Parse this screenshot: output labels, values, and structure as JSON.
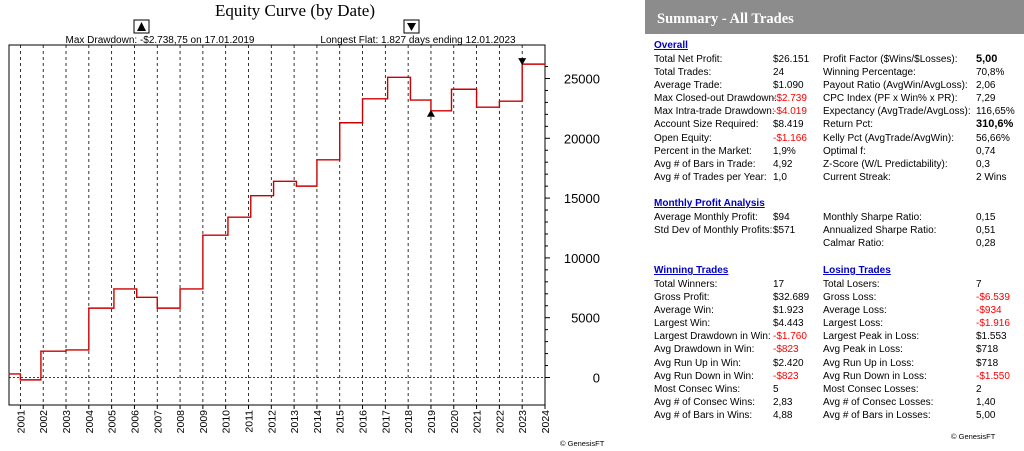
{
  "chart": {
    "title": "Equity Curve (by Date)",
    "max_drawdown_label": "Max Drawdown: -$2.738,75 on 17.01.2019",
    "longest_flat_label": "Longest Flat: 1.827 days ending 12.01.2023",
    "watermark": "© GenesisFT"
  },
  "chart_data": {
    "type": "line",
    "title": "Equity Curve (by Date)",
    "xlabel": "",
    "ylabel": "",
    "x": [
      "2000.5",
      "2001.0",
      "2001.9",
      "2003.0",
      "2004.0",
      "2005.1",
      "2006.1",
      "2007.0",
      "2008.0",
      "2009.0",
      "2010.1",
      "2011.1",
      "2012.1",
      "2013.1",
      "2014.0",
      "2015.0",
      "2016.0",
      "2017.1",
      "2018.1",
      "2019.0",
      "2019.9",
      "2021.0",
      "2022.0",
      "2023.0",
      "2023.4"
    ],
    "values": [
      300,
      -200,
      2200,
      2300,
      5800,
      7400,
      6700,
      5800,
      7400,
      11900,
      13400,
      15200,
      16400,
      16000,
      18200,
      21300,
      23300,
      25100,
      23200,
      22300,
      24100,
      22600,
      23100,
      26200,
      26200
    ],
    "ylim": [
      -2300,
      27800
    ],
    "yticks": [
      "0",
      "5000",
      "10000",
      "15000",
      "20000",
      "25000"
    ],
    "ytick_values": [
      0,
      5000,
      10000,
      15000,
      20000,
      25000
    ],
    "xticks": [
      "2001",
      "2002",
      "2003",
      "2004",
      "2005",
      "2006",
      "2007",
      "2008",
      "2009",
      "2010",
      "2011",
      "2012",
      "2013",
      "2014",
      "2015",
      "2016",
      "2017",
      "2018",
      "2019",
      "2020",
      "2021",
      "2022",
      "2023",
      "2024"
    ],
    "grid": true,
    "markers": [
      {
        "label": "max-drawdown",
        "x": 2019.0,
        "y": 22300,
        "direction": "up"
      },
      {
        "label": "longest-flat-end",
        "x": 2023.0,
        "y": 26200,
        "direction": "down"
      }
    ],
    "color": "#cc0000"
  },
  "summary": {
    "title": "Summary - All Trades",
    "watermark": "© GenesisFT",
    "overall": {
      "heading": "Overall",
      "left": [
        {
          "label": "Total Net Profit:",
          "value": "$26.151"
        },
        {
          "label": "Total Trades:",
          "value": "24"
        },
        {
          "label": "Average Trade:",
          "value": "$1.090"
        },
        {
          "label": "Max Closed-out Drawdown:",
          "value": "-$2.739",
          "neg": true
        },
        {
          "label": "Max Intra-trade Drawdown:",
          "value": "-$4.019",
          "neg": true
        },
        {
          "label": "Account Size Required:",
          "value": "$8.419"
        },
        {
          "label": "Open Equity:",
          "value": "-$1.166",
          "neg": true
        },
        {
          "label": "Percent in the Market:",
          "value": "1,9%"
        },
        {
          "label": "Avg # of Bars in Trade:",
          "value": "4,92"
        },
        {
          "label": "Avg # of Trades per Year:",
          "value": "1,0"
        }
      ],
      "right": [
        {
          "label": "Profit Factor ($Wins/$Losses):",
          "value": "5,00",
          "bold": true
        },
        {
          "label": "Winning Percentage:",
          "value": "70,8%"
        },
        {
          "label": "Payout Ratio (AvgWin/AvgLoss):",
          "value": "2,06"
        },
        {
          "label": "CPC Index (PF x Win% x PR):",
          "value": "7,29"
        },
        {
          "label": "Expectancy (AvgTrade/AvgLoss):",
          "value": "116,65%"
        },
        {
          "label": "Return Pct:",
          "value": "310,6%",
          "bold": true
        },
        {
          "label": "Kelly Pct (AvgTrade/AvgWin):",
          "value": "56,66%"
        },
        {
          "label": "Optimal f:",
          "value": "0,74"
        },
        {
          "label": "Z-Score (W/L Predictability):",
          "value": "0,3"
        },
        {
          "label": "Current Streak:",
          "value": "2 Wins"
        }
      ]
    },
    "monthly": {
      "heading": "Monthly Profit Analysis",
      "left": [
        {
          "label": "Average Monthly Profit:",
          "value": "$94"
        },
        {
          "label": "Std Dev of Monthly Profits:",
          "value": "$571"
        }
      ],
      "right": [
        {
          "label": "Monthly Sharpe Ratio:",
          "value": "0,15"
        },
        {
          "label": "Annualized Sharpe Ratio:",
          "value": "0,51"
        },
        {
          "label": "Calmar Ratio:",
          "value": "0,28"
        }
      ]
    },
    "winning": {
      "heading": "Winning Trades",
      "rows": [
        {
          "label": "Total Winners:",
          "value": "17"
        },
        {
          "label": "Gross Profit:",
          "value": "$32.689"
        },
        {
          "label": "Average Win:",
          "value": "$1.923"
        },
        {
          "label": "Largest Win:",
          "value": "$4.443"
        },
        {
          "label": "Largest Drawdown in Win:",
          "value": "-$1.760",
          "neg": true
        },
        {
          "label": "Avg Drawdown in Win:",
          "value": "-$823",
          "neg": true
        },
        {
          "label": "Avg Run Up in Win:",
          "value": "$2.420"
        },
        {
          "label": "Avg Run Down in Win:",
          "value": "-$823",
          "neg": true
        },
        {
          "label": "Most Consec Wins:",
          "value": "5"
        },
        {
          "label": "Avg # of Consec Wins:",
          "value": "2,83"
        },
        {
          "label": "Avg # of Bars in Wins:",
          "value": "4,88"
        }
      ]
    },
    "losing": {
      "heading": "Losing Trades",
      "rows": [
        {
          "label": "Total Losers:",
          "value": "7"
        },
        {
          "label": "Gross Loss:",
          "value": "-$6.539",
          "neg": true
        },
        {
          "label": "Average Loss:",
          "value": "-$934",
          "neg": true
        },
        {
          "label": "Largest Loss:",
          "value": "-$1.916",
          "neg": true
        },
        {
          "label": "Largest Peak in Loss:",
          "value": "$1.553"
        },
        {
          "label": "Avg Peak in Loss:",
          "value": "$718"
        },
        {
          "label": "Avg Run Up in Loss:",
          "value": "$718"
        },
        {
          "label": "Avg Run Down in Loss:",
          "value": "-$1.550",
          "neg": true
        },
        {
          "label": "Most Consec Losses:",
          "value": "2"
        },
        {
          "label": "Avg # of Consec Losses:",
          "value": "1,40"
        },
        {
          "label": "Avg # of Bars in Losses:",
          "value": "5,00"
        }
      ]
    }
  }
}
